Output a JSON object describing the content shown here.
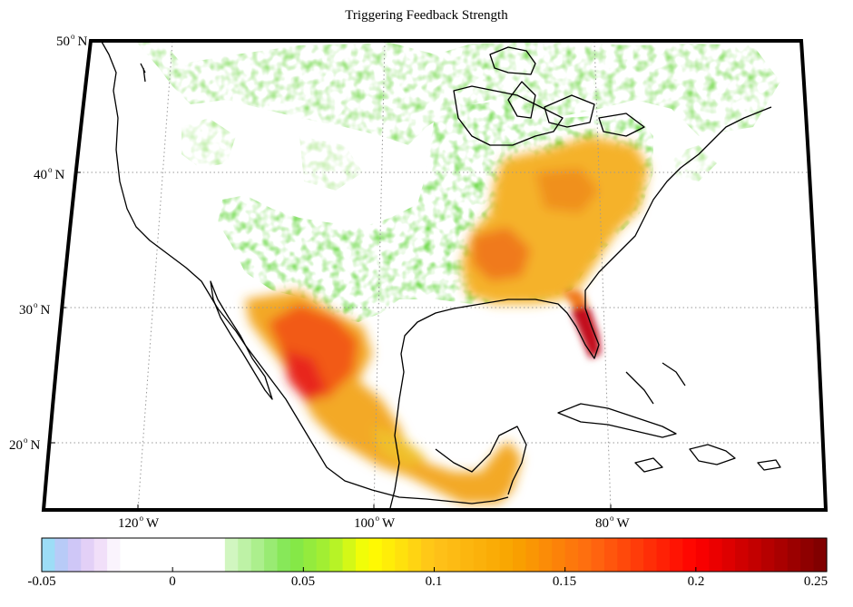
{
  "title": "Triggering Feedback Strength",
  "lat_labels": [
    {
      "value": "50",
      "hemi": "N"
    },
    {
      "value": "40",
      "hemi": "N"
    },
    {
      "value": "30",
      "hemi": "N"
    },
    {
      "value": "20",
      "hemi": "N"
    }
  ],
  "lon_labels": [
    {
      "value": "120",
      "hemi": "W"
    },
    {
      "value": "100",
      "hemi": "W"
    },
    {
      "value": "80",
      "hemi": "W"
    }
  ],
  "colorbar": {
    "min": -0.05,
    "max": 0.25,
    "tick_labels": [
      "-0.05",
      "0",
      "0.05",
      "0.1",
      "0.15",
      "0.2",
      "0.25"
    ],
    "ticks": [
      -0.05,
      0,
      0.05,
      0.1,
      0.15,
      0.2,
      0.25
    ]
  },
  "colors": {
    "ocean_background": "#ffffff",
    "coastline": "#000000",
    "grid": "#9a9a9a"
  }
}
